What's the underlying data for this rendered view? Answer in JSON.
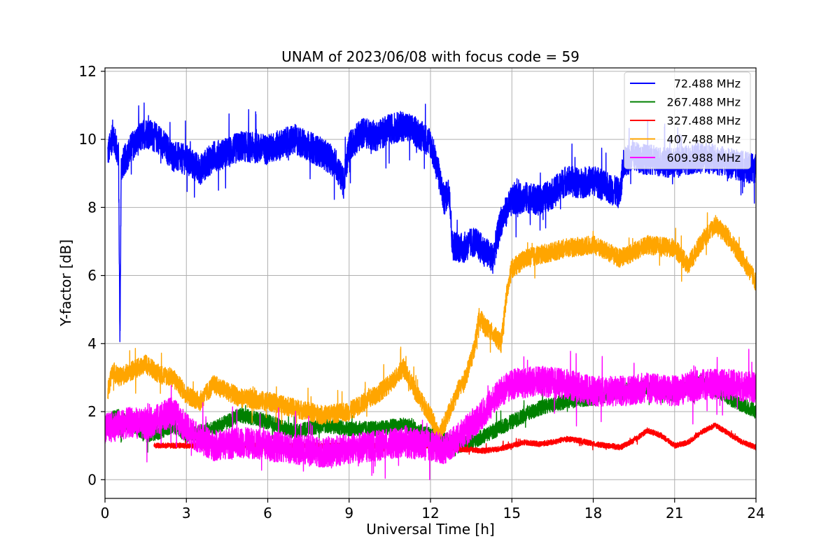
{
  "chart_data": {
    "type": "line",
    "title": "UNAM of 2023/06/08 with focus code = 59",
    "xlabel": "Universal Time [h]",
    "ylabel": "Y-factor [dB]",
    "xlim": [
      0,
      24
    ],
    "ylim": [
      -0.55,
      12.1
    ],
    "xticks": [
      0,
      3,
      6,
      9,
      12,
      15,
      18,
      21,
      24
    ],
    "yticks": [
      0,
      2,
      4,
      6,
      8,
      10,
      12
    ],
    "grid": true,
    "legend_position": "top-right",
    "series": [
      {
        "name": "72.488 MHz",
        "color": "#0000ff",
        "noise": 0.45,
        "x": [
          0.1,
          0.2,
          0.3,
          0.4,
          0.5,
          0.55,
          0.6,
          1.0,
          1.5,
          2.0,
          2.5,
          3.0,
          3.5,
          4.0,
          4.5,
          5.0,
          6.0,
          7.0,
          8.0,
          8.5,
          8.8,
          9.0,
          9.5,
          10.0,
          10.5,
          11.0,
          11.5,
          12.0,
          12.3,
          12.5,
          12.7,
          12.8,
          13.2,
          13.6,
          14.0,
          14.3,
          14.6,
          15.0,
          15.5,
          16.0,
          16.5,
          17.0,
          17.5,
          18.0,
          18.5,
          19.0,
          19.1,
          19.5,
          20.0,
          21.0,
          22.0,
          23.0,
          23.6,
          24.0
        ],
        "y": [
          9.6,
          9.8,
          10.2,
          9.8,
          9.5,
          4.0,
          9.2,
          9.8,
          10.2,
          10.0,
          9.5,
          9.4,
          9.1,
          9.5,
          9.6,
          9.8,
          9.7,
          10.0,
          9.6,
          9.3,
          8.7,
          9.8,
          10.2,
          10.1,
          10.3,
          10.4,
          10.2,
          9.9,
          9.0,
          8.2,
          8.5,
          6.9,
          6.8,
          7.0,
          6.7,
          6.5,
          7.6,
          8.2,
          8.3,
          8.2,
          8.4,
          8.8,
          8.7,
          8.8,
          8.6,
          8.4,
          9.3,
          9.5,
          9.4,
          9.3,
          9.5,
          9.3,
          9.2,
          9.1
        ]
      },
      {
        "name": "267.488 MHz",
        "color": "#008000",
        "noise": 0.22,
        "x": [
          0.0,
          0.3,
          0.5,
          0.6,
          0.7,
          1.0,
          1.5,
          2.0,
          2.5,
          3.0,
          4.0,
          5.0,
          6.0,
          7.0,
          8.0,
          9.0,
          10.0,
          11.0,
          12.0,
          12.5,
          13.0,
          13.5,
          14.0,
          14.5,
          15.0,
          15.5,
          16.0,
          17.0,
          18.0,
          19.0,
          20.0,
          21.0,
          22.0,
          23.0,
          24.0
        ],
        "y": [
          1.6,
          1.8,
          1.9,
          1.2,
          1.7,
          1.6,
          1.3,
          1.4,
          1.6,
          1.3,
          1.5,
          1.9,
          1.7,
          1.4,
          1.6,
          1.5,
          1.5,
          1.6,
          1.3,
          1.2,
          1.0,
          1.1,
          1.3,
          1.5,
          1.7,
          1.9,
          2.1,
          2.3,
          2.4,
          2.6,
          2.7,
          2.5,
          2.9,
          2.4,
          2.0
        ]
      },
      {
        "name": "327.488 MHz",
        "color": "#ff0000",
        "noise": 0.08,
        "x": [
          1.8,
          2.5,
          3.0,
          4.0,
          5.0,
          6.0,
          7.0,
          8.0,
          9.0,
          10.0,
          11.0,
          12.0,
          12.5,
          13.0,
          14.0,
          14.5,
          15.0,
          15.5,
          16.0,
          16.5,
          17.0,
          17.5,
          18.0,
          18.5,
          19.0,
          19.5,
          20.0,
          20.5,
          21.0,
          21.5,
          22.0,
          22.5,
          23.0,
          23.5,
          24.0
        ],
        "y": [
          1.0,
          1.0,
          1.0,
          1.0,
          1.0,
          1.0,
          1.0,
          1.0,
          1.0,
          1.0,
          1.0,
          1.0,
          0.9,
          0.9,
          0.85,
          0.9,
          1.0,
          1.1,
          1.05,
          1.1,
          1.2,
          1.15,
          1.05,
          1.0,
          0.95,
          1.15,
          1.45,
          1.3,
          1.0,
          1.1,
          1.4,
          1.6,
          1.35,
          1.1,
          0.95
        ]
      },
      {
        "name": "407.488 MHz",
        "color": "#ffa500",
        "noise": 0.28,
        "x": [
          0.1,
          0.3,
          0.5,
          1.0,
          1.5,
          2.0,
          2.5,
          3.0,
          3.5,
          4.0,
          5.0,
          6.0,
          7.0,
          8.0,
          9.0,
          10.0,
          10.5,
          11.0,
          11.5,
          12.0,
          12.3,
          12.6,
          13.0,
          13.3,
          13.6,
          13.8,
          14.0,
          14.3,
          14.6,
          14.8,
          15.0,
          15.5,
          16.0,
          17.0,
          18.0,
          19.0,
          20.0,
          21.0,
          21.5,
          22.0,
          22.5,
          23.0,
          23.5,
          24.0
        ],
        "y": [
          2.6,
          3.2,
          3.0,
          3.2,
          3.4,
          3.1,
          3.0,
          2.5,
          2.3,
          2.8,
          2.4,
          2.3,
          2.1,
          1.9,
          2.0,
          2.5,
          2.8,
          3.3,
          2.5,
          1.9,
          1.3,
          1.8,
          2.6,
          3.0,
          3.8,
          4.8,
          4.5,
          4.3,
          4.0,
          5.4,
          6.2,
          6.5,
          6.6,
          6.8,
          6.9,
          6.5,
          6.9,
          6.8,
          6.3,
          7.0,
          7.5,
          7.1,
          6.5,
          5.8
        ]
      },
      {
        "name": "609.988 MHz",
        "color": "#ff00ff",
        "noise": 0.45,
        "x": [
          0.0,
          0.5,
          1.0,
          1.5,
          2.0,
          2.5,
          3.0,
          3.5,
          4.0,
          5.0,
          6.0,
          7.0,
          8.0,
          9.0,
          10.0,
          11.0,
          12.0,
          12.5,
          13.0,
          13.5,
          14.0,
          14.5,
          15.0,
          16.0,
          17.0,
          18.0,
          19.0,
          20.0,
          21.0,
          22.0,
          23.0,
          24.0
        ],
        "y": [
          1.5,
          1.6,
          1.7,
          1.6,
          1.8,
          2.0,
          1.5,
          1.2,
          1.0,
          1.1,
          1.0,
          0.9,
          0.8,
          0.9,
          1.0,
          1.1,
          1.0,
          0.9,
          1.2,
          1.6,
          2.0,
          2.5,
          2.8,
          2.9,
          2.8,
          2.6,
          2.6,
          2.7,
          2.6,
          2.8,
          2.8,
          2.7
        ]
      }
    ]
  }
}
